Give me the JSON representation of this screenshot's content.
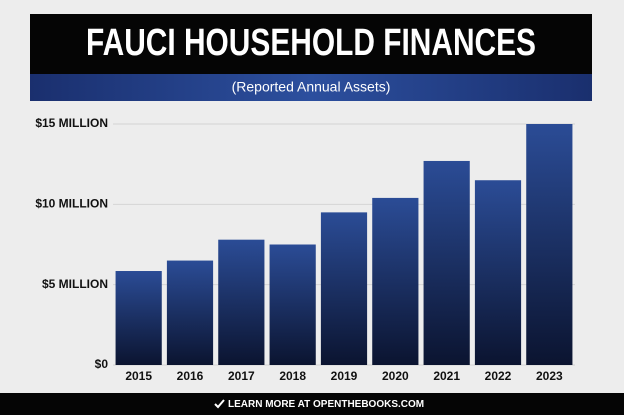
{
  "chart_data": {
    "type": "bar",
    "title": "FAUCI HOUSEHOLD FINANCES",
    "subtitle": "(Reported Annual Assets)",
    "categories": [
      "2015",
      "2016",
      "2017",
      "2018",
      "2019",
      "2020",
      "2021",
      "2022",
      "2023"
    ],
    "values": [
      5.85,
      6.5,
      7.8,
      7.5,
      9.5,
      10.4,
      12.7,
      11.5,
      15.0
    ],
    "color": "#2b4c96",
    "ylim": [
      0,
      15
    ],
    "yticks": [
      {
        "value": 0,
        "label": "$0"
      },
      {
        "value": 5,
        "label": "$5 MILLION"
      },
      {
        "value": 10,
        "label": "$10 MILLION"
      },
      {
        "value": 15,
        "label": "$15 MILLION"
      }
    ],
    "grid": true
  },
  "footer": "LEARN MORE AT OPENTHEBOOKS.COM"
}
